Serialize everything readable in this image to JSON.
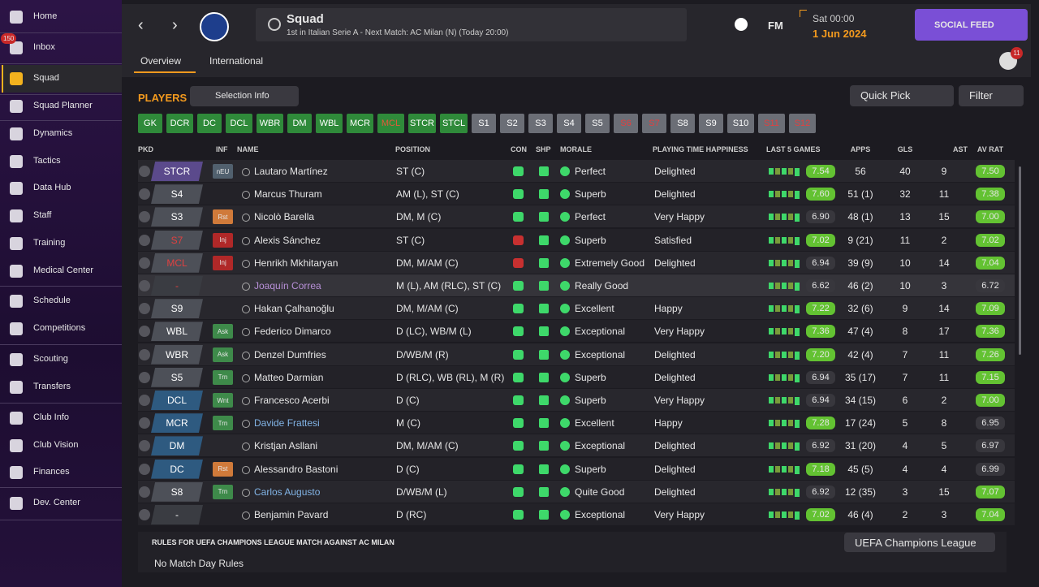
{
  "sidebar": {
    "items": [
      {
        "label": "Home"
      },
      {
        "label": "Inbox",
        "badge": "150"
      },
      {
        "label": "Squad"
      },
      {
        "label": "Squad Planner"
      },
      {
        "label": "Dynamics"
      },
      {
        "label": "Tactics"
      },
      {
        "label": "Data Hub"
      },
      {
        "label": "Staff"
      },
      {
        "label": "Training"
      },
      {
        "label": "Medical Center"
      },
      {
        "label": "Schedule"
      },
      {
        "label": "Competitions"
      },
      {
        "label": "Scouting"
      },
      {
        "label": "Transfers"
      },
      {
        "label": "Club Info"
      },
      {
        "label": "Club Vision"
      },
      {
        "label": "Finances"
      },
      {
        "label": "Dev. Center"
      }
    ]
  },
  "header": {
    "title": "Squad",
    "subtitle": "1st in Italian Serie A - Next Match: AC Milan (N) (Today 20:00)",
    "brand": "FM",
    "time": "Sat 00:00",
    "date": "1 Jun 2024",
    "social": "SOCIAL FEED",
    "notifications": "11",
    "tabs": [
      "Overview",
      "International"
    ]
  },
  "toolbar": {
    "title": "PLAYERS",
    "selection": "Selection Info",
    "quick_pick": "Quick Pick",
    "filter": "Filter"
  },
  "positions": [
    {
      "label": "GK",
      "color": "#2f8a3a",
      "text_color": "#ffffff"
    },
    {
      "label": "DCR",
      "color": "#2f8a3a",
      "text_color": "#ffffff"
    },
    {
      "label": "DC",
      "color": "#2f8a3a",
      "text_color": "#ffffff"
    },
    {
      "label": "DCL",
      "color": "#2f8a3a",
      "text_color": "#ffffff"
    },
    {
      "label": "WBR",
      "color": "#2f8a3a",
      "text_color": "#ffffff"
    },
    {
      "label": "DM",
      "color": "#2f8a3a",
      "text_color": "#ffffff"
    },
    {
      "label": "WBL",
      "color": "#2f8a3a",
      "text_color": "#ffffff"
    },
    {
      "label": "MCR",
      "color": "#2f8a3a",
      "text_color": "#ffffff"
    },
    {
      "label": "MCL",
      "color": "#2f8a3a",
      "text_color": "#e05a3a"
    },
    {
      "label": "STCR",
      "color": "#2f8a3a",
      "text_color": "#ffffff"
    },
    {
      "label": "STCL",
      "color": "#2f8a3a",
      "text_color": "#ffffff"
    },
    {
      "label": "S1",
      "color": "#6b6e76",
      "text_color": "#ffffff"
    },
    {
      "label": "S2",
      "color": "#6b6e76",
      "text_color": "#ffffff"
    },
    {
      "label": "S3",
      "color": "#6b6e76",
      "text_color": "#ffffff"
    },
    {
      "label": "S4",
      "color": "#6b6e76",
      "text_color": "#ffffff"
    },
    {
      "label": "S5",
      "color": "#6b6e76",
      "text_color": "#ffffff"
    },
    {
      "label": "S6",
      "color": "#6b6e76",
      "text_color": "#e04040"
    },
    {
      "label": "S7",
      "color": "#6b6e76",
      "text_color": "#e04040"
    },
    {
      "label": "S8",
      "color": "#6b6e76",
      "text_color": "#ffffff"
    },
    {
      "label": "S9",
      "color": "#6b6e76",
      "text_color": "#ffffff"
    },
    {
      "label": "S10",
      "color": "#6b6e76",
      "text_color": "#ffffff"
    },
    {
      "label": "S11",
      "color": "#6b6e76",
      "text_color": "#e04040"
    },
    {
      "label": "S12",
      "color": "#6b6e76",
      "text_color": "#e04040"
    }
  ],
  "table": {
    "columns": [
      "PKD",
      "INF",
      "NAME",
      "POSITION",
      "CON",
      "SHP",
      "MORALE",
      "PLAYING TIME HAPPINESS",
      "LAST 5 GAMES",
      "APPS",
      "GLS",
      "AST",
      "AV RAT"
    ],
    "rows": [
      {
        "pkd": "STCR",
        "pkd_color": "#5b4a8c",
        "pkd_text": "#ffffff",
        "inf": "nEU",
        "inf_color": "#51606e",
        "name": "Lautaro Martínez",
        "name_color": "#e6e6e6",
        "position": "ST (C)",
        "morale": "Perfect",
        "happiness": "Delighted",
        "last5": "7.54",
        "apps": "56",
        "gls": "40",
        "ast": "9",
        "av_rat": "7.50"
      },
      {
        "pkd": "S4",
        "pkd_color": "#4d5058",
        "pkd_text": "#ffffff",
        "name": "Marcus Thuram",
        "name_color": "#e6e6e6",
        "position": "AM (L), ST (C)",
        "morale": "Superb",
        "happiness": "Delighted",
        "last5": "7.60",
        "apps": "51 (1)",
        "gls": "32",
        "ast": "11",
        "av_rat": "7.38"
      },
      {
        "pkd": "S3",
        "pkd_color": "#4d5058",
        "pkd_text": "#ffffff",
        "inf": "Rst",
        "inf_color": "#d07a3a",
        "name": "Nicolò Barella",
        "name_color": "#e6e6e6",
        "position": "DM, M (C)",
        "morale": "Perfect",
        "happiness": "Very Happy",
        "last5": "6.90",
        "apps": "48 (1)",
        "gls": "13",
        "ast": "15",
        "av_rat": "7.00"
      },
      {
        "pkd": "S7",
        "pkd_color": "#4d5058",
        "pkd_text": "#e04040",
        "inf": "Inj",
        "inf_color": "#b02828",
        "name": "Alexis Sánchez",
        "name_color": "#e6e6e6",
        "position": "ST (C)",
        "morale": "Superb",
        "happiness": "Satisfied",
        "last5": "7.02",
        "apps": "9 (21)",
        "gls": "11",
        "ast": "2",
        "av_rat": "7.02"
      },
      {
        "pkd": "MCL",
        "pkd_color": "#4d5058",
        "pkd_text": "#e04040",
        "inf": "Inj",
        "inf_color": "#b02828",
        "name": "Henrikh Mkhitaryan",
        "name_color": "#e6e6e6",
        "position": "DM, M/AM (C)",
        "morale": "Extremely Good",
        "happiness": "Delighted",
        "last5": "6.94",
        "apps": "39 (9)",
        "gls": "10",
        "ast": "14",
        "av_rat": "7.04"
      },
      {
        "pkd": "-",
        "pkd_color": "#3a3c42",
        "pkd_text": "#e04040",
        "name": "Joaquín Correa",
        "name_color": "#b890d8",
        "position": "M (L), AM (RLC), ST (C)",
        "morale": "Really Good",
        "last5": "6.62",
        "apps": "46 (2)",
        "gls": "10",
        "ast": "3",
        "av_rat": "6.72"
      },
      {
        "pkd": "S9",
        "pkd_color": "#4d5058",
        "pkd_text": "#ffffff",
        "name": "Hakan Çalhanoğlu",
        "name_color": "#e6e6e6",
        "position": "DM, M/AM (C)",
        "morale": "Excellent",
        "happiness": "Happy",
        "last5": "7.22",
        "apps": "32 (6)",
        "gls": "9",
        "ast": "14",
        "av_rat": "7.09"
      },
      {
        "pkd": "WBL",
        "pkd_color": "#4d5058",
        "pkd_text": "#ffffff",
        "inf": "Ask",
        "inf_color": "#3e8a4a",
        "name": "Federico Dimarco",
        "name_color": "#e6e6e6",
        "position": "D (LC), WB/M (L)",
        "morale": "Exceptional",
        "happiness": "Very Happy",
        "last5": "7.36",
        "apps": "47 (4)",
        "gls": "8",
        "ast": "17",
        "av_rat": "7.36"
      },
      {
        "pkd": "WBR",
        "pkd_color": "#4d5058",
        "pkd_text": "#ffffff",
        "inf": "Ask",
        "inf_color": "#3e8a4a",
        "name": "Denzel Dumfries",
        "name_color": "#e6e6e6",
        "position": "D/WB/M (R)",
        "morale": "Exceptional",
        "happiness": "Delighted",
        "last5": "7.20",
        "apps": "42 (4)",
        "gls": "7",
        "ast": "11",
        "av_rat": "7.26"
      },
      {
        "pkd": "S5",
        "pkd_color": "#4d5058",
        "pkd_text": "#ffffff",
        "inf": "Trn",
        "inf_color": "#3e8a4a",
        "name": "Matteo Darmian",
        "name_color": "#e6e6e6",
        "position": "D (RLC), WB (RL), M (R)",
        "morale": "Superb",
        "happiness": "Delighted",
        "last5": "6.94",
        "apps": "35 (17)",
        "gls": "7",
        "ast": "11",
        "av_rat": "7.15"
      },
      {
        "pkd": "DCL",
        "pkd_color": "#2e5a80",
        "pkd_text": "#ffffff",
        "inf": "Wnt",
        "inf_color": "#3e8a4a",
        "name": "Francesco Acerbi",
        "name_color": "#e6e6e6",
        "position": "D (C)",
        "morale": "Superb",
        "happiness": "Very Happy",
        "last5": "6.94",
        "apps": "34 (15)",
        "gls": "6",
        "ast": "2",
        "av_rat": "7.00"
      },
      {
        "pkd": "MCR",
        "pkd_color": "#2e5a80",
        "pkd_text": "#ffffff",
        "inf": "Trn",
        "inf_color": "#3e8a4a",
        "name": "Davide Frattesi",
        "name_color": "#82b4e6",
        "position": "M (C)",
        "morale": "Excellent",
        "happiness": "Happy",
        "last5": "7.28",
        "apps": "17 (24)",
        "gls": "5",
        "ast": "8",
        "av_rat": "6.95"
      },
      {
        "pkd": "DM",
        "pkd_color": "#2e5a80",
        "pkd_text": "#ffffff",
        "name": "Kristjan Asllani",
        "name_color": "#e6e6e6",
        "position": "DM, M/AM (C)",
        "morale": "Exceptional",
        "happiness": "Delighted",
        "last5": "6.92",
        "apps": "31 (20)",
        "gls": "4",
        "ast": "5",
        "av_rat": "6.97"
      },
      {
        "pkd": "DC",
        "pkd_color": "#2e5a80",
        "pkd_text": "#ffffff",
        "inf": "Rst",
        "inf_color": "#d07a3a",
        "name": "Alessandro Bastoni",
        "name_color": "#e6e6e6",
        "position": "D (C)",
        "morale": "Superb",
        "happiness": "Delighted",
        "last5": "7.18",
        "apps": "45 (5)",
        "gls": "4",
        "ast": "4",
        "av_rat": "6.99"
      },
      {
        "pkd": "S8",
        "pkd_color": "#4d5058",
        "pkd_text": "#ffffff",
        "inf": "Trn",
        "inf_color": "#3e8a4a",
        "name": "Carlos Augusto",
        "name_color": "#82b4e6",
        "position": "D/WB/M (L)",
        "morale": "Quite Good",
        "happiness": "Delighted",
        "last5": "6.92",
        "apps": "12 (35)",
        "gls": "3",
        "ast": "15",
        "av_rat": "7.07"
      },
      {
        "pkd": "-",
        "pkd_color": "#3a3c42",
        "pkd_text": "#ffffff",
        "name": "Benjamin Pavard",
        "name_color": "#e6e6e6",
        "position": "D (RC)",
        "morale": "Exceptional",
        "happiness": "Very Happy",
        "last5": "7.02",
        "apps": "46 (4)",
        "gls": "2",
        "ast": "3",
        "av_rat": "7.04"
      }
    ]
  },
  "footer": {
    "rules_title": "RULES FOR UEFA CHAMPIONS LEAGUE MATCH AGAINST AC MILAN",
    "competition": "UEFA Champions League",
    "rules": "No Match Day Rules"
  }
}
